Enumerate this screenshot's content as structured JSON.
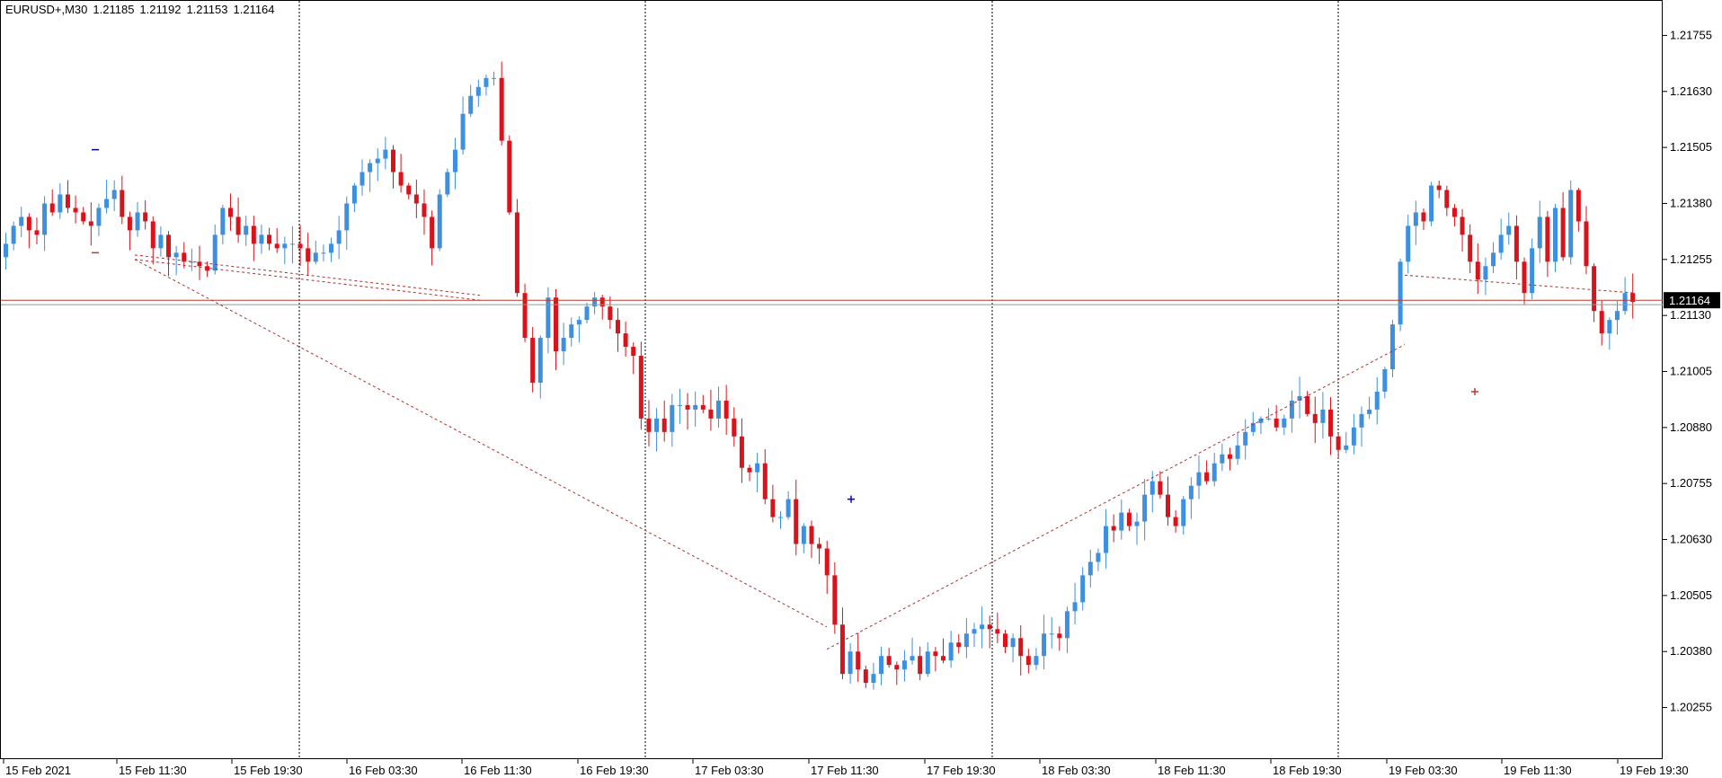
{
  "header": {
    "symbol": "EURUSD+,M30",
    "open": "1.21185",
    "high": "1.21192",
    "low": "1.21153",
    "close": "1.21164"
  },
  "colors": {
    "bull": "#3d8fe0",
    "bear": "#d9131b",
    "grid": "#000000",
    "price_line": "#c0392b",
    "ask_line": "#7fa3a0",
    "trend_line": "#b03030",
    "price_tag_bg": "#000000"
  },
  "chart_data": {
    "type": "candlestick",
    "title": "EURUSD+,M30",
    "ylim": [
      1.2021,
      1.2181
    ],
    "y_ticks": [
      "1.21755",
      "1.21630",
      "1.21505",
      "1.21380",
      "1.21255",
      "1.21130",
      "1.21005",
      "1.20880",
      "1.20755",
      "1.20630",
      "1.20505",
      "1.20380",
      "1.20255"
    ],
    "x_ticks": [
      "15 Feb 2021",
      "15 Feb 11:30",
      "15 Feb 19:30",
      "16 Feb 03:30",
      "16 Feb 11:30",
      "16 Feb 19:30",
      "17 Feb 03:30",
      "17 Feb 11:30",
      "17 Feb 19:30",
      "18 Feb 03:30",
      "18 Feb 11:30",
      "18 Feb 19:30",
      "19 Feb 03:30",
      "19 Feb 11:30",
      "19 Feb 19:30"
    ],
    "current_price": "1.21164",
    "ask_price": 1.21154,
    "grid": "vertical dotted at day boundaries",
    "day_separators": [
      "16 Feb",
      "17 Feb",
      "18 Feb",
      "19 Feb"
    ],
    "closes": [
      1.2129,
      1.2133,
      1.2135,
      1.2132,
      1.2131,
      1.2138,
      1.2136,
      1.214,
      1.2137,
      1.2136,
      1.2134,
      1.2133,
      1.2137,
      1.2139,
      1.2141,
      1.2135,
      1.2132,
      1.2136,
      1.2134,
      1.2128,
      1.2131,
      1.2126,
      1.2127,
      1.2125,
      1.2125,
      1.2124,
      1.2123,
      1.2131,
      1.2137,
      1.2135,
      1.2131,
      1.2133,
      1.2129,
      1.2131,
      1.2129,
      1.2128,
      1.2129,
      1.2129,
      1.2128,
      1.2125,
      1.2127,
      1.2127,
      1.2129,
      1.2132,
      1.2138,
      1.2142,
      1.2145,
      1.2147,
      1.2148,
      1.215,
      1.2145,
      1.2142,
      1.214,
      1.2138,
      1.2135,
      1.2128,
      1.214,
      1.2145,
      1.215,
      1.2158,
      1.2162,
      1.2164,
      1.2166,
      1.2166,
      1.2152,
      1.2136,
      1.2118,
      1.2108,
      1.2098,
      1.2108,
      1.2117,
      1.2105,
      1.2108,
      1.2111,
      1.2112,
      1.2115,
      1.2117,
      1.2115,
      1.2112,
      1.2109,
      1.2106,
      1.2104,
      1.209,
      1.2087,
      1.209,
      1.2087,
      1.2093,
      1.2093,
      1.2092,
      1.2093,
      1.2092,
      1.209,
      1.2094,
      1.209,
      1.2086,
      1.2079,
      1.2078,
      1.208,
      1.2072,
      1.2068,
      1.2068,
      1.2072,
      1.2062,
      1.2066,
      1.2062,
      1.2061,
      1.2055,
      1.2044,
      1.2033,
      1.2038,
      1.2034,
      1.2031,
      1.2033,
      1.2037,
      1.2035,
      1.2034,
      1.2036,
      1.2037,
      1.2033,
      1.2038,
      1.2037,
      1.2036,
      1.204,
      1.2039,
      1.2042,
      1.2043,
      1.2044,
      1.2043,
      1.2042,
      1.2039,
      1.2041,
      1.2037,
      1.2035,
      1.2037,
      1.2042,
      1.2042,
      1.2041,
      1.2047,
      1.2049,
      1.2055,
      1.2058,
      1.206,
      1.2066,
      1.2065,
      1.2069,
      1.2066,
      1.2067,
      1.2073,
      1.2076,
      1.2073,
      1.2068,
      1.2066,
      1.2072,
      1.2075,
      1.2078,
      1.2076,
      1.208,
      1.2082,
      1.2081,
      1.2084,
      1.2087,
      1.2089,
      1.209,
      1.209,
      1.2088,
      1.209,
      1.2094,
      1.2095,
      1.2091,
      1.2089,
      1.2092,
      1.2086,
      1.2083,
      1.2084,
      1.2088,
      1.2091,
      1.2092,
      1.2096,
      1.2101,
      1.2111,
      1.2125,
      1.2133,
      1.2136,
      1.2134,
      1.2142,
      1.2141,
      1.2137,
      1.2135,
      1.2131,
      1.2125,
      1.2121,
      1.2124,
      1.2127,
      1.2131,
      1.2133,
      1.2125,
      1.2118,
      1.2128,
      1.2135,
      1.2125,
      1.2137,
      1.2126,
      1.2141,
      1.2134,
      1.2124,
      1.2114,
      1.2109,
      1.2112,
      1.2114,
      1.2118,
      1.2116
    ],
    "markers": [
      {
        "type": "dash",
        "color": "#000080",
        "x": "15 Feb 11:30",
        "y": 1.215
      },
      {
        "type": "dash",
        "color": "#c0392b",
        "x": "15 Feb 11:30",
        "y": 1.2127
      },
      {
        "type": "cross",
        "color": "#0000cc",
        "x": "17 Feb 11:30",
        "y": 1.2072
      },
      {
        "type": "cross",
        "color": "#c0392b",
        "x": "19 Feb 03:30",
        "y": 1.2096
      }
    ],
    "trend_lines": [
      {
        "from": [
          "15 Feb 11:30",
          1.21255
        ],
        "to": [
          "16 Feb 11:30",
          1.21164
        ],
        "style": "dotted"
      },
      {
        "from": [
          "15 Feb 11:30",
          1.21265
        ],
        "to": [
          "16 Feb 11:30",
          1.21175
        ],
        "style": "dotted"
      },
      {
        "from": [
          "15 Feb 11:30",
          1.21255
        ],
        "to": [
          "17 Feb 11:30",
          1.20435
        ],
        "style": "dotted"
      },
      {
        "from": [
          "17 Feb 11:30",
          1.20385
        ],
        "to": [
          "19 Feb 03:30",
          1.21065
        ],
        "style": "dotted"
      },
      {
        "from": [
          "19 Feb 03:30",
          1.2122
        ],
        "to": [
          "19 Feb 19:30",
          1.2118
        ],
        "style": "dotted"
      }
    ]
  }
}
